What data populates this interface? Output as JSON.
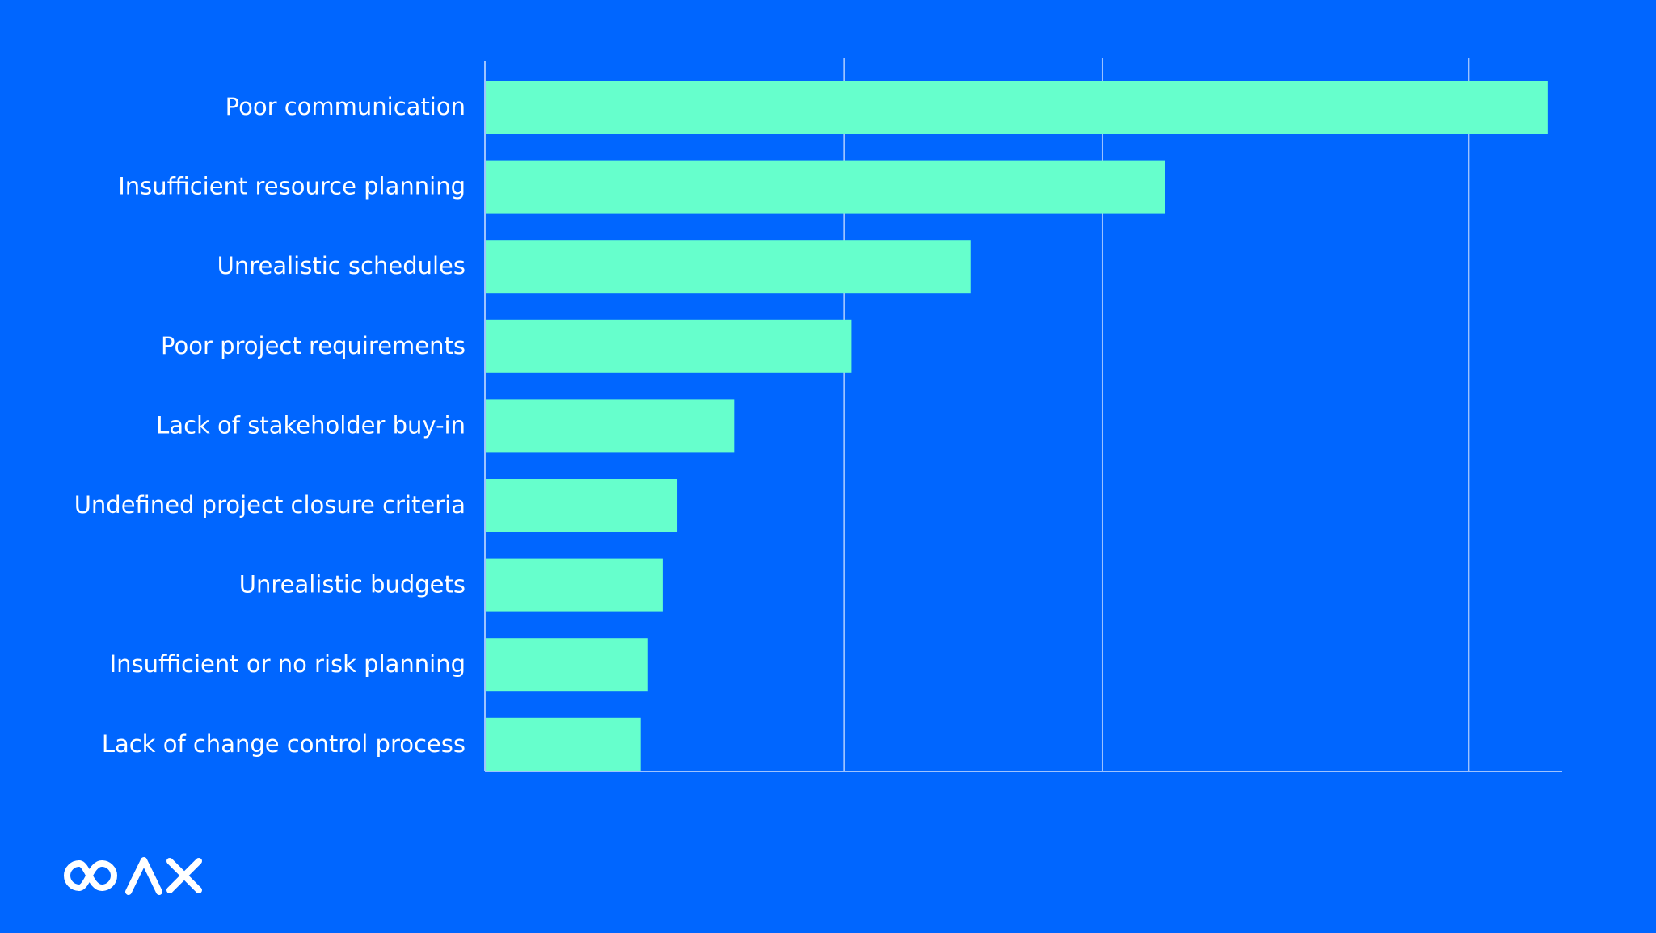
{
  "colors": {
    "background": "#0066ff",
    "bar": "#66ffcc",
    "gridline": "#9ec3ff",
    "label_text": "#ffffff"
  },
  "chart_data": {
    "type": "bar",
    "orientation": "horizontal",
    "categories": [
      "Poor communication",
      "Insufficient resource planning",
      "Unrealistic schedules",
      "Poor project requirements",
      "Lack of stakeholder buy-in",
      "Undefined project closure criteria",
      "Unrealistic budgets",
      "Insufficient or no risk planning",
      "Lack of change control process"
    ],
    "values": [
      0.58,
      0.371,
      0.265,
      0.2,
      0.136,
      0.105,
      0.097,
      0.089,
      0.085
    ],
    "xlim": [
      0,
      0.588
    ],
    "gridlines": [
      0.196,
      0.337,
      0.537
    ],
    "tick_labels_shown": false,
    "grid": true,
    "legend": "none"
  },
  "logo": {
    "text": "COAX",
    "icon": "coax-logo-icon"
  }
}
